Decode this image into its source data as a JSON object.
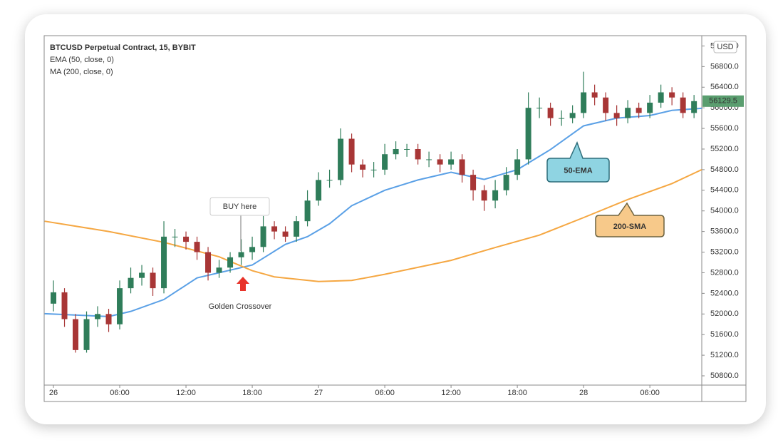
{
  "chart_data": {
    "type": "candlestick",
    "title": "BTCUSD Perpetual Contract, 15, BYBIT",
    "currency": "USD",
    "up_color": "#2f7d5a",
    "down_color": "#a83636",
    "x": [
      0,
      1,
      2,
      3,
      4,
      5,
      6,
      7,
      8,
      9,
      10,
      11,
      12,
      13,
      14,
      15,
      16,
      17,
      18,
      19,
      20,
      21,
      22,
      23,
      24,
      25,
      26,
      27,
      28,
      29,
      30,
      31,
      32,
      33,
      34,
      35,
      36,
      37,
      38,
      39,
      40,
      41,
      42,
      43,
      44,
      45,
      46,
      47,
      48,
      49,
      50,
      51,
      52,
      53,
      54,
      55,
      56,
      57,
      58
    ],
    "open": [
      52200,
      52420,
      51900,
      51300,
      51900,
      52000,
      51800,
      52500,
      52700,
      52800,
      52500,
      53500,
      53500,
      53400,
      53200,
      52800,
      52900,
      53100,
      53200,
      53300,
      53700,
      53600,
      53500,
      53800,
      54200,
      54600,
      54600,
      55400,
      54900,
      54800,
      54800,
      55100,
      55200,
      55200,
      55000,
      55000,
      54900,
      55000,
      54700,
      54400,
      54200,
      54400,
      54700,
      55000,
      56000,
      56000,
      55800,
      55800,
      55900,
      56300,
      56200,
      55900,
      55800,
      56000,
      55900,
      56100,
      56300,
      56200,
      55900
    ],
    "high": [
      52650,
      52500,
      52000,
      52050,
      52150,
      52100,
      52650,
      52900,
      52950,
      52900,
      53800,
      53650,
      53600,
      53500,
      53300,
      53050,
      53200,
      53450,
      53500,
      53900,
      53800,
      53700,
      53900,
      54400,
      54750,
      54800,
      55600,
      55500,
      55000,
      54950,
      55300,
      55350,
      55300,
      55300,
      55150,
      55100,
      55150,
      55100,
      54800,
      54500,
      54600,
      54850,
      55200,
      56300,
      56200,
      56100,
      55950,
      56050,
      56700,
      56450,
      56300,
      56050,
      56150,
      56100,
      56250,
      56450,
      56400,
      56300,
      56250
    ],
    "low": [
      52050,
      51750,
      51250,
      51250,
      51750,
      51650,
      51700,
      52400,
      52550,
      52350,
      52400,
      53300,
      53250,
      53050,
      52650,
      52700,
      52800,
      52950,
      53050,
      53200,
      53450,
      53400,
      53400,
      53700,
      54100,
      54450,
      54500,
      54750,
      54650,
      54650,
      54700,
      55000,
      55050,
      54900,
      54850,
      54750,
      54800,
      54550,
      54200,
      54000,
      54050,
      54300,
      54600,
      54900,
      55800,
      55650,
      55650,
      55700,
      55800,
      56050,
      55750,
      55650,
      55700,
      55800,
      55800,
      56000,
      56050,
      55800,
      55800
    ],
    "close": [
      52420,
      51900,
      51300,
      51900,
      52000,
      51800,
      52500,
      52700,
      52800,
      52500,
      53500,
      53500,
      53400,
      53200,
      52800,
      52900,
      53100,
      53200,
      53300,
      53700,
      53600,
      53500,
      53800,
      54200,
      54600,
      54600,
      55400,
      54900,
      54800,
      54800,
      55100,
      55200,
      55200,
      55000,
      55000,
      54900,
      55000,
      54700,
      54400,
      54200,
      54400,
      54700,
      55000,
      56000,
      56000,
      55800,
      55800,
      55900,
      56300,
      56200,
      55900,
      55800,
      56000,
      55900,
      56100,
      56300,
      56200,
      55900,
      56129.5
    ],
    "last_price": 56129.5,
    "last_price_color": "#5a9e6f",
    "overlays": [
      {
        "name": "EMA (50, close, 0)",
        "callout": "50-EMA",
        "color": "#5aa0e6",
        "callout_color": "#8fd4e2",
        "x": [
          -0.8,
          5,
          7,
          10,
          13,
          16,
          18,
          21,
          23,
          25,
          27,
          30,
          33,
          36,
          39,
          42,
          45,
          48,
          51,
          54,
          56,
          58.7
        ],
        "values": [
          52005,
          51950,
          52050,
          52280,
          52700,
          52850,
          52950,
          53350,
          53500,
          53750,
          54100,
          54400,
          54600,
          54750,
          54610,
          54800,
          55190,
          55650,
          55800,
          55850,
          55950,
          55990
        ]
      },
      {
        "name": "MA (200, close, 0)",
        "callout": "200-SMA",
        "color": "#f5a742",
        "callout_color": "#f7c98a",
        "x": [
          -0.8,
          5,
          10,
          15,
          18,
          20,
          24,
          27,
          30,
          36,
          40,
          44,
          48,
          52,
          56,
          58.7
        ],
        "values": [
          53800,
          53600,
          53390,
          53110,
          52840,
          52720,
          52630,
          52650,
          52770,
          53040,
          53290,
          53530,
          53870,
          54220,
          54530,
          54800
        ]
      }
    ],
    "annotations": {
      "buy": "BUY here",
      "crossover": "Golden Crossover"
    },
    "xlim": [
      -0.84,
      58.7
    ],
    "xticks": [
      {
        "value": 0,
        "label": "26"
      },
      {
        "value": 6,
        "label": "06:00"
      },
      {
        "value": 12,
        "label": "12:00"
      },
      {
        "value": 18,
        "label": "18:00"
      },
      {
        "value": 24,
        "label": "27"
      },
      {
        "value": 30,
        "label": "06:00"
      },
      {
        "value": 36,
        "label": "12:00"
      },
      {
        "value": 42,
        "label": "18:00"
      },
      {
        "value": 48,
        "label": "28"
      },
      {
        "value": 54,
        "label": "06:00"
      }
    ],
    "ylim": [
      50620,
      57400
    ],
    "yticks": [
      {
        "value": 50800,
        "label": "50800.0"
      },
      {
        "value": 51200,
        "label": "51200.0"
      },
      {
        "value": 51600,
        "label": "51600.0"
      },
      {
        "value": 52000,
        "label": "52000.0"
      },
      {
        "value": 52400,
        "label": "52400.0"
      },
      {
        "value": 52800,
        "label": "52800.0"
      },
      {
        "value": 53200,
        "label": "53200.0"
      },
      {
        "value": 53600,
        "label": "53600.0"
      },
      {
        "value": 54000,
        "label": "54000.0"
      },
      {
        "value": 54400,
        "label": "54400.0"
      },
      {
        "value": 54800,
        "label": "54800.0"
      },
      {
        "value": 55200,
        "label": "55200.0"
      },
      {
        "value": 55600,
        "label": "55600.0"
      },
      {
        "value": 56000,
        "label": "56000.0"
      },
      {
        "value": 56400,
        "label": "56400.0"
      },
      {
        "value": 56800,
        "label": "56800.0"
      },
      {
        "value": 57200,
        "label": "57200.0"
      }
    ]
  }
}
